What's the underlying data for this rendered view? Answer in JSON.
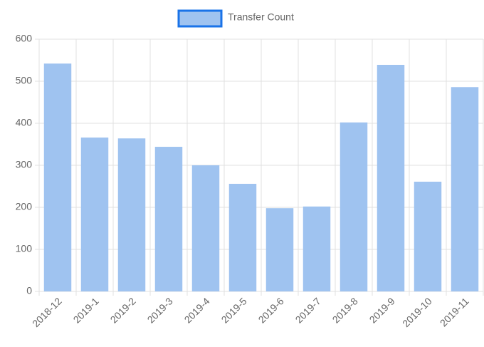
{
  "chart_data": {
    "type": "bar",
    "categories": [
      "2018-12",
      "2019-1",
      "2019-2",
      "2019-3",
      "2019-4",
      "2019-5",
      "2019-6",
      "2019-7",
      "2019-8",
      "2019-9",
      "2019-10",
      "2019-11"
    ],
    "series": [
      {
        "name": "Transfer Count",
        "color": "#9fc3f0",
        "border_color": "#1a73e8",
        "values": [
          542,
          366,
          364,
          344,
          300,
          256,
          198,
          202,
          402,
          539,
          261,
          486
        ]
      }
    ],
    "ylim": [
      0,
      600
    ],
    "yticks": [
      0,
      100,
      200,
      300,
      400,
      500,
      600
    ],
    "grid": true,
    "legend": "top"
  }
}
